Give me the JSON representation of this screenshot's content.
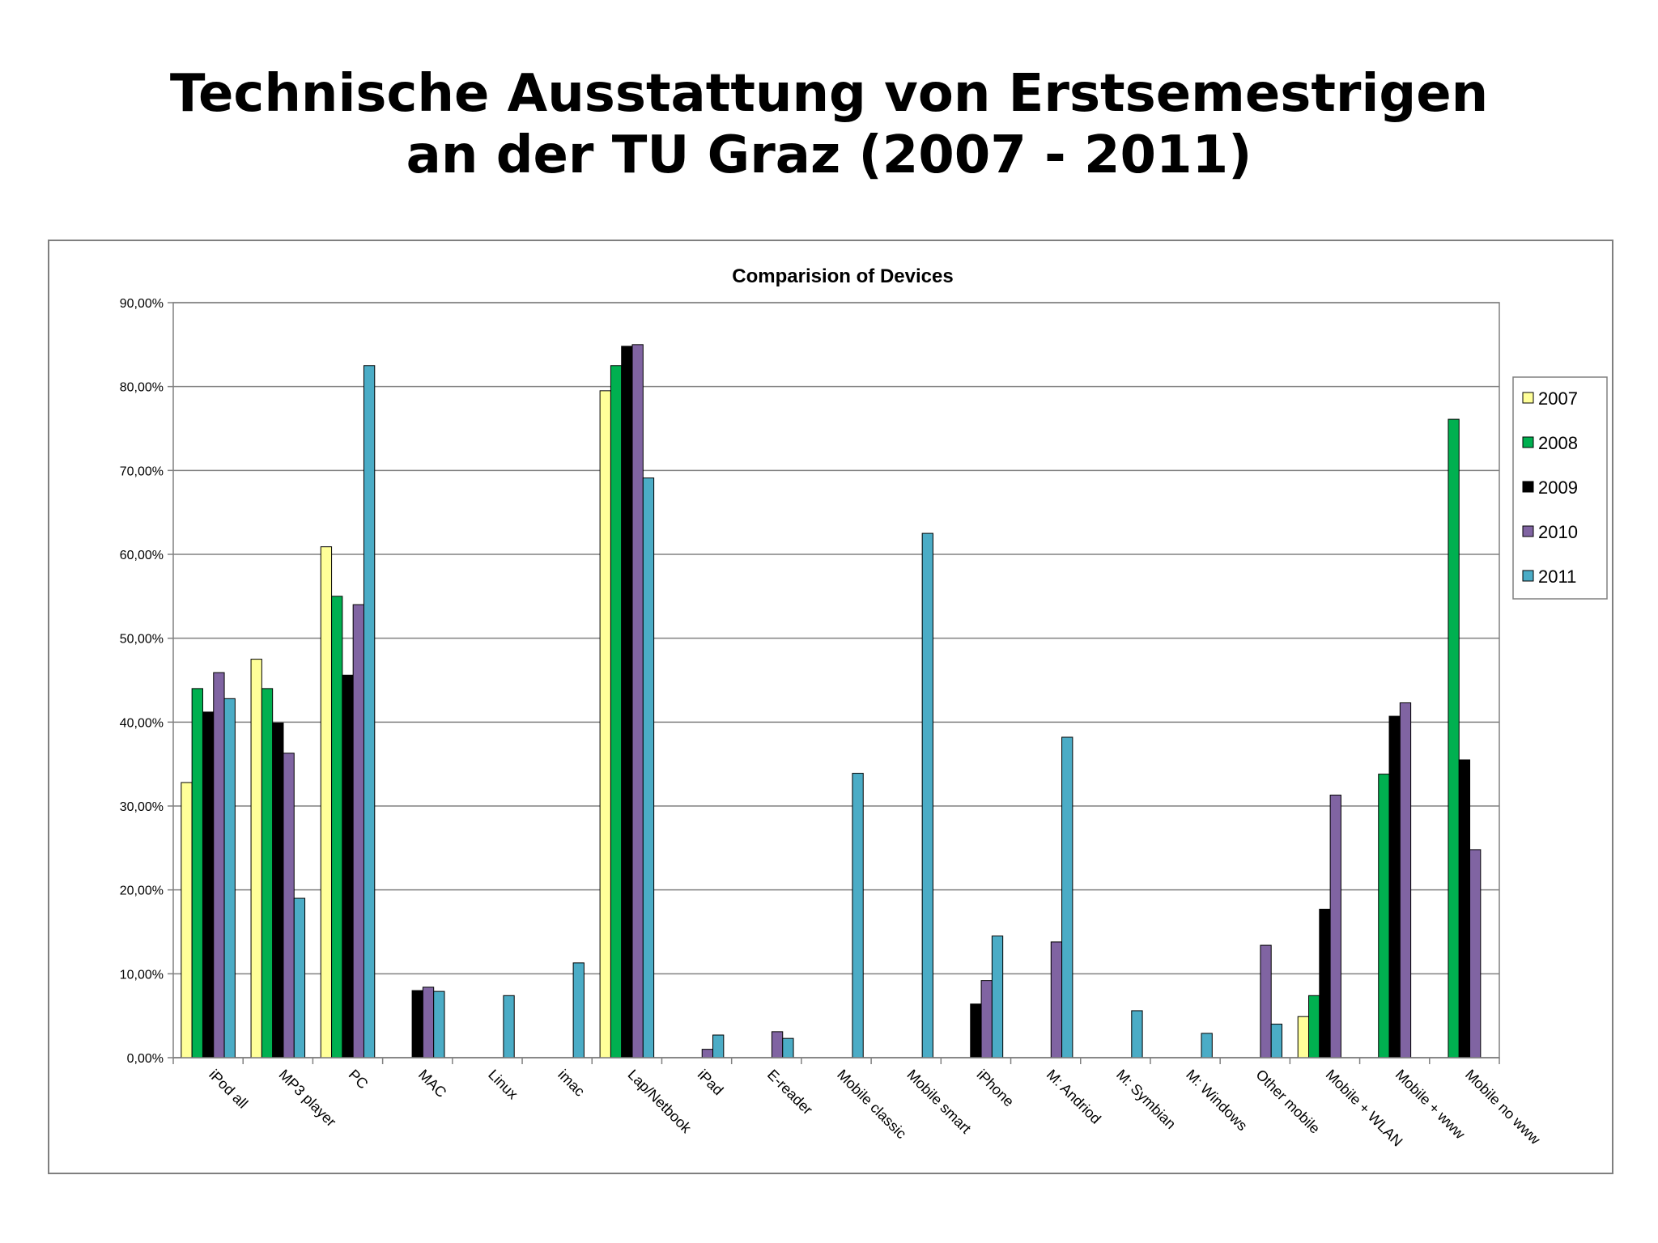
{
  "slide": {
    "title_line1": "Technische Ausstattung von Erstsemestrigen",
    "title_line2": "an der TU Graz (2007 - 2011)"
  },
  "chart_data": {
    "type": "bar",
    "title": "Comparision  of Devices",
    "xlabel": "",
    "ylabel": "",
    "ylim": [
      0,
      90
    ],
    "yticks": [
      "0,00%",
      "10,00%",
      "20,00%",
      "30,00%",
      "40,00%",
      "50,00%",
      "60,00%",
      "70,00%",
      "80,00%",
      "90,00%"
    ],
    "grid": true,
    "legend_position": "right",
    "categories": [
      "iPod all",
      "MP3 player",
      "PC",
      "MAC",
      "Linux",
      "imac",
      "Lap/Netbook",
      "iPad",
      "E-reader",
      "Mobile classic",
      "Mobile smart",
      "iPhone",
      "M: Andriod",
      "M: Symbian",
      "M: Windows",
      "Other mobile",
      "Mobile + WLAN",
      "Mobile + www",
      "Mobile no www"
    ],
    "series": [
      {
        "name": "2007",
        "color": "#ffff99",
        "values": [
          32.8,
          47.5,
          60.9,
          null,
          null,
          null,
          79.5,
          null,
          null,
          null,
          null,
          null,
          null,
          null,
          null,
          null,
          4.9,
          null,
          null
        ]
      },
      {
        "name": "2008",
        "color": "#00b050",
        "values": [
          44.0,
          44.0,
          55.0,
          null,
          null,
          null,
          82.5,
          null,
          null,
          null,
          null,
          null,
          null,
          null,
          null,
          null,
          7.4,
          33.8,
          76.1
        ]
      },
      {
        "name": "2009",
        "color": "#000000",
        "values": [
          41.2,
          39.9,
          45.6,
          8.0,
          null,
          null,
          84.8,
          null,
          null,
          null,
          null,
          6.4,
          null,
          null,
          null,
          null,
          17.7,
          40.7,
          35.5
        ]
      },
      {
        "name": "2010",
        "color": "#8064a2",
        "values": [
          45.9,
          36.3,
          54.0,
          8.4,
          null,
          null,
          85.0,
          1.0,
          3.1,
          null,
          null,
          9.2,
          13.8,
          null,
          null,
          13.4,
          31.3,
          42.3,
          24.8
        ]
      },
      {
        "name": "2011",
        "color": "#4bacc6",
        "values": [
          42.8,
          19.0,
          82.5,
          7.9,
          7.4,
          11.3,
          69.1,
          2.7,
          2.3,
          33.9,
          62.5,
          14.5,
          38.2,
          5.6,
          2.9,
          4.0,
          null,
          null,
          null
        ]
      }
    ]
  }
}
